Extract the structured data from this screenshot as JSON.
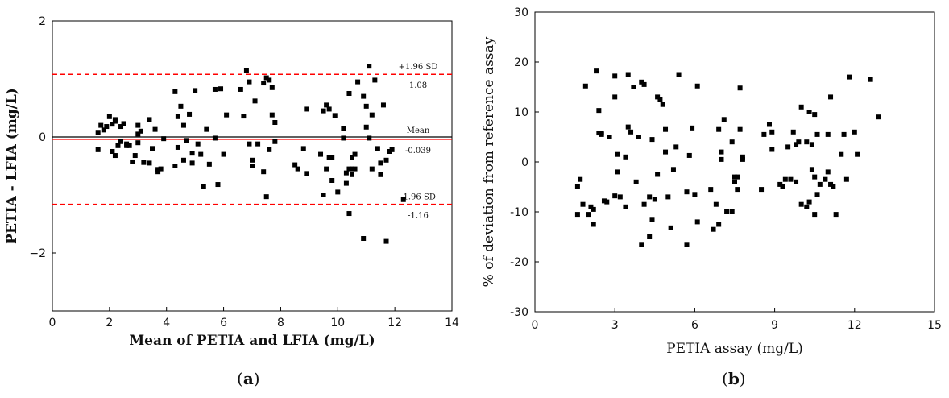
{
  "panel_labels": {
    "a": "a",
    "b": "b"
  },
  "chart_data": [
    {
      "type": "scatter",
      "title": "",
      "panel": "a",
      "xlabel": "Mean of PETIA and LFIA (mg/L)",
      "ylabel": "PETIA - LFIA (mg/L)",
      "xlim": [
        0,
        14
      ],
      "ylim": [
        -3,
        2
      ],
      "xticks": [
        0,
        2,
        4,
        6,
        8,
        10,
        12,
        14
      ],
      "yticks": [
        -2,
        0,
        2
      ],
      "ytick_labels": [
        "−2",
        "0",
        "2"
      ],
      "grid": false,
      "legend": "none",
      "colors": {
        "points": "#000000",
        "mean_line": "#ff0000",
        "zero_line": "#000000",
        "limit_lines": "#ff0000"
      },
      "reference_lines": [
        {
          "y": 1.08,
          "label": "+1.96 SD",
          "value": "1.08",
          "style": "dashed"
        },
        {
          "y": -0.039,
          "label": "Mean",
          "value": "-0.039",
          "style": "solid"
        },
        {
          "y": -1.16,
          "label": "-1.96 SD",
          "value": "-1.16",
          "style": "dashed"
        }
      ],
      "x": [
        1.6,
        1.7,
        1.8,
        1.6,
        1.9,
        2.0,
        2.1,
        2.2,
        2.2,
        2.3,
        2.1,
        2.2,
        2.4,
        2.5,
        2.6,
        2.7,
        2.4,
        2.6,
        2.9,
        3.0,
        3.1,
        3.0,
        3.2,
        2.8,
        3.0,
        3.4,
        3.5,
        3.7,
        3.6,
        3.8,
        3.5,
        3.4,
        3.9,
        3.7,
        4.3,
        4.4,
        4.5,
        4.6,
        4.4,
        4.3,
        4.8,
        4.6,
        4.7,
        5.0,
        4.9,
        5.1,
        5.3,
        4.9,
        5.2,
        5.4,
        5.7,
        5.8,
        5.9,
        6.0,
        6.1,
        5.7,
        5.5,
        6.6,
        6.8,
        6.9,
        7.0,
        7.1,
        6.7,
        7.2,
        7.0,
        6.9,
        7.4,
        7.5,
        7.6,
        7.7,
        7.6,
        7.7,
        7.8,
        7.5,
        7.4,
        7.8,
        8.5,
        8.6,
        8.9,
        8.9,
        8.8,
        9.5,
        9.6,
        9.7,
        9.6,
        9.8,
        9.7,
        9.9,
        9.5,
        9.8,
        9.4,
        10.0,
        10.2,
        10.4,
        10.5,
        10.6,
        10.7,
        10.3,
        10.9,
        11.0,
        11.1,
        11.2,
        11.3,
        11.0,
        11.4,
        11.5,
        11.6,
        11.7,
        11.8,
        11.9,
        11.5,
        11.7,
        10.5,
        10.3,
        10.2,
        10.5,
        10.6,
        10.4,
        10.4,
        10.9,
        11.1,
        11.2,
        12.3
      ],
      "y": [
        0.08,
        0.2,
        0.12,
        -0.22,
        0.18,
        0.35,
        0.22,
        0.3,
        -0.32,
        -0.15,
        -0.25,
        0.27,
        0.18,
        0.23,
        -0.15,
        -0.15,
        -0.08,
        -0.12,
        -0.32,
        -0.1,
        0.1,
        0.2,
        -0.44,
        -0.43,
        0.05,
        0.3,
        -0.2,
        -0.6,
        0.13,
        -0.55,
        -0.2,
        -0.45,
        -0.03,
        -0.56,
        0.78,
        0.35,
        0.53,
        -0.4,
        -0.18,
        -0.5,
        0.39,
        0.2,
        -0.06,
        0.8,
        -0.28,
        -0.12,
        -0.85,
        -0.45,
        -0.3,
        0.13,
        0.82,
        -0.82,
        0.83,
        -0.3,
        0.38,
        -0.02,
        -0.47,
        0.82,
        1.15,
        0.95,
        -0.5,
        0.62,
        0.36,
        -0.12,
        -0.4,
        -0.12,
        0.93,
        1.02,
        0.98,
        0.85,
        -0.22,
        0.38,
        0.25,
        -1.03,
        -0.6,
        -0.08,
        -0.48,
        -0.55,
        0.48,
        -0.63,
        -0.2,
        0.45,
        0.55,
        0.48,
        -0.55,
        -0.35,
        -0.35,
        0.37,
        -1.0,
        -0.75,
        -0.3,
        -0.95,
        0.15,
        0.75,
        -0.65,
        -0.55,
        0.95,
        -0.8,
        0.7,
        0.53,
        1.22,
        0.38,
        0.98,
        0.17,
        -0.2,
        -0.65,
        0.55,
        -0.4,
        -0.25,
        -0.22,
        -0.45,
        -1.8,
        -0.55,
        -0.62,
        -0.02,
        -0.35,
        -0.3,
        -1.32,
        -0.55,
        -1.75,
        -0.02,
        -0.55,
        -1.08
      ]
    },
    {
      "type": "scatter",
      "title": "",
      "panel": "b",
      "xlabel": "PETIA assay (mg/L)",
      "ylabel": "% of deviation from reference assay",
      "xlim": [
        0,
        15
      ],
      "ylim": [
        -30,
        30
      ],
      "xticks": [
        0,
        3,
        6,
        9,
        12,
        15
      ],
      "yticks": [
        -30,
        -20,
        -10,
        0,
        10,
        20,
        30
      ],
      "grid": false,
      "legend": "none",
      "colors": {
        "points": "#000000"
      },
      "x": [
        1.6,
        1.7,
        1.8,
        1.6,
        1.9,
        2.0,
        2.1,
        2.2,
        2.2,
        2.3,
        2.4,
        2.5,
        2.6,
        2.7,
        2.4,
        2.5,
        3.0,
        3.1,
        3.0,
        3.2,
        2.8,
        3.0,
        3.1,
        3.4,
        3.5,
        3.7,
        3.6,
        3.8,
        3.5,
        3.4,
        3.9,
        4.0,
        4.1,
        4.0,
        4.1,
        4.3,
        4.4,
        4.5,
        4.6,
        4.4,
        4.3,
        4.8,
        4.6,
        4.7,
        5.0,
        4.9,
        5.1,
        5.3,
        4.9,
        5.2,
        5.4,
        5.7,
        5.8,
        5.9,
        6.0,
        6.1,
        5.7,
        6.1,
        6.6,
        6.8,
        6.9,
        7.0,
        7.1,
        6.7,
        7.2,
        7.0,
        6.9,
        7.4,
        7.5,
        7.6,
        7.7,
        7.6,
        7.7,
        7.8,
        7.5,
        7.4,
        7.8,
        8.5,
        8.6,
        8.9,
        8.9,
        8.8,
        9.2,
        9.3,
        9.4,
        9.6,
        9.8,
        9.7,
        9.9,
        9.5,
        9.8,
        10.0,
        10.2,
        10.4,
        10.5,
        10.6,
        10.7,
        10.3,
        10.9,
        11.0,
        11.1,
        11.2,
        11.3,
        11.0,
        11.5,
        11.7,
        11.8,
        12.0,
        12.1,
        11.6,
        10.5,
        10.3,
        10.2,
        10.5,
        10.6,
        10.4,
        10.0,
        11.1,
        12.6,
        12.9
      ],
      "y": [
        -5,
        -3.5,
        -8.5,
        -10.5,
        15.2,
        -10.5,
        -9,
        -12.5,
        -9.5,
        18.2,
        10.3,
        5.8,
        -7.8,
        -8,
        5.8,
        5.5,
        17.2,
        -2,
        13,
        -7,
        5,
        -6.8,
        1.5,
        -9,
        7,
        15,
        6,
        -4,
        17.5,
        1,
        5,
        -16.5,
        15.5,
        16,
        -8.5,
        -7,
        -11.5,
        -7.5,
        13,
        4.5,
        -15,
        11.5,
        -2.5,
        12.5,
        -7,
        6.5,
        -13.2,
        3,
        2,
        -1.5,
        17.5,
        -6,
        1.3,
        6.8,
        -6.5,
        15.2,
        -16.5,
        -12,
        -5.5,
        -8.5,
        -12.5,
        2,
        8.5,
        -13.5,
        -10,
        0.5,
        6.5,
        4,
        -4,
        -5.5,
        14.8,
        -3,
        6.5,
        0.5,
        -3,
        -10,
        1,
        -5.5,
        5.5,
        6,
        2.5,
        7.5,
        -4.5,
        -5,
        -3.5,
        -3.5,
        3.5,
        6,
        4,
        3,
        -4,
        11,
        4,
        -1.5,
        -3,
        -6.5,
        -4.5,
        10,
        -3.5,
        -2,
        13,
        -5,
        -10.5,
        5.5,
        1.5,
        -3.5,
        17,
        6,
        1.5,
        5.5,
        9.5,
        -8,
        -9,
        -10.5,
        5.5,
        3.5,
        -8.5,
        -4.5,
        16.5,
        9
      ]
    }
  ]
}
